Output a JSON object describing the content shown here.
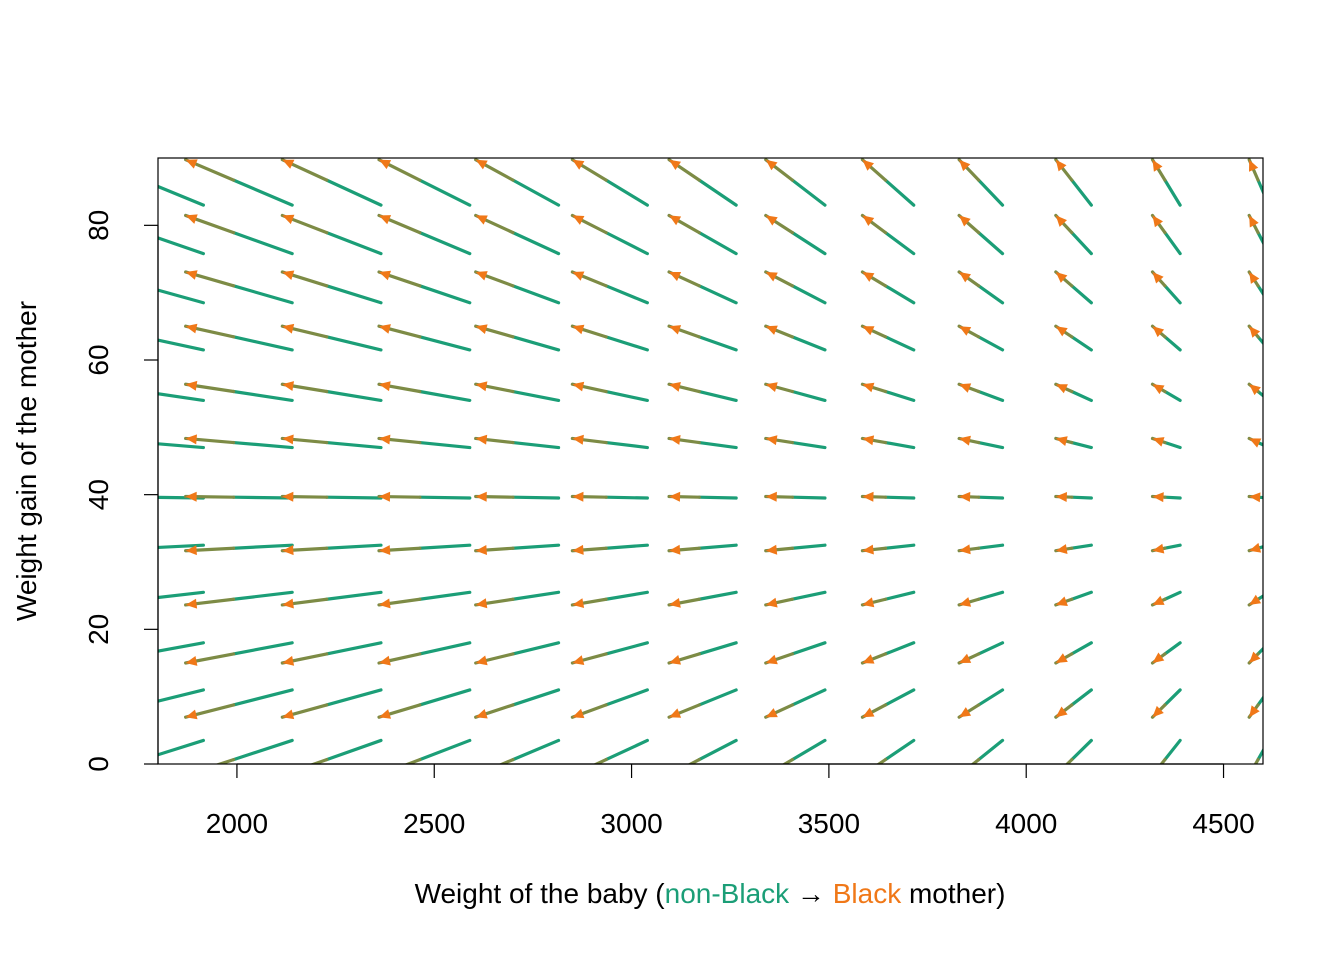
{
  "chart_data": {
    "type": "vector-field",
    "xlabel_parts": [
      {
        "text": "Weight of the baby (",
        "role": "plain"
      },
      {
        "text": "non-Black",
        "role": "start"
      },
      {
        "text": " → ",
        "role": "plain"
      },
      {
        "text": "Black",
        "role": "end"
      },
      {
        "text": " mother)",
        "role": "plain"
      }
    ],
    "ylabel": "Weight gain of the mother",
    "xlim": [
      1800,
      4600
    ],
    "ylim": [
      0,
      90
    ],
    "x_ticks": [
      2000,
      2500,
      3000,
      3500,
      4000,
      4500
    ],
    "y_ticks": [
      0,
      20,
      40,
      60,
      80
    ],
    "colors": {
      "start": "#1b9e77",
      "end": "#f07818",
      "blend": "#7d8b45",
      "axis": "#000000"
    },
    "grid_start": {
      "x": [
        1915,
        2140,
        2365,
        2590,
        2815,
        3040,
        3265,
        3490,
        3715,
        3940,
        4165,
        4390,
        4615
      ],
      "y": [
        -4.5,
        3.5,
        11,
        18,
        25.5,
        32.5,
        39.5,
        47,
        54,
        61.5,
        68.5,
        75.8,
        83
      ]
    },
    "transport_model": {
      "x_shift": [
        -280,
        -270,
        -250,
        -230,
        -210,
        -190,
        -170,
        -150,
        -130,
        -110,
        -90,
        -70,
        -50
      ],
      "y_offset": 38,
      "y_scale": 1.15
    }
  }
}
